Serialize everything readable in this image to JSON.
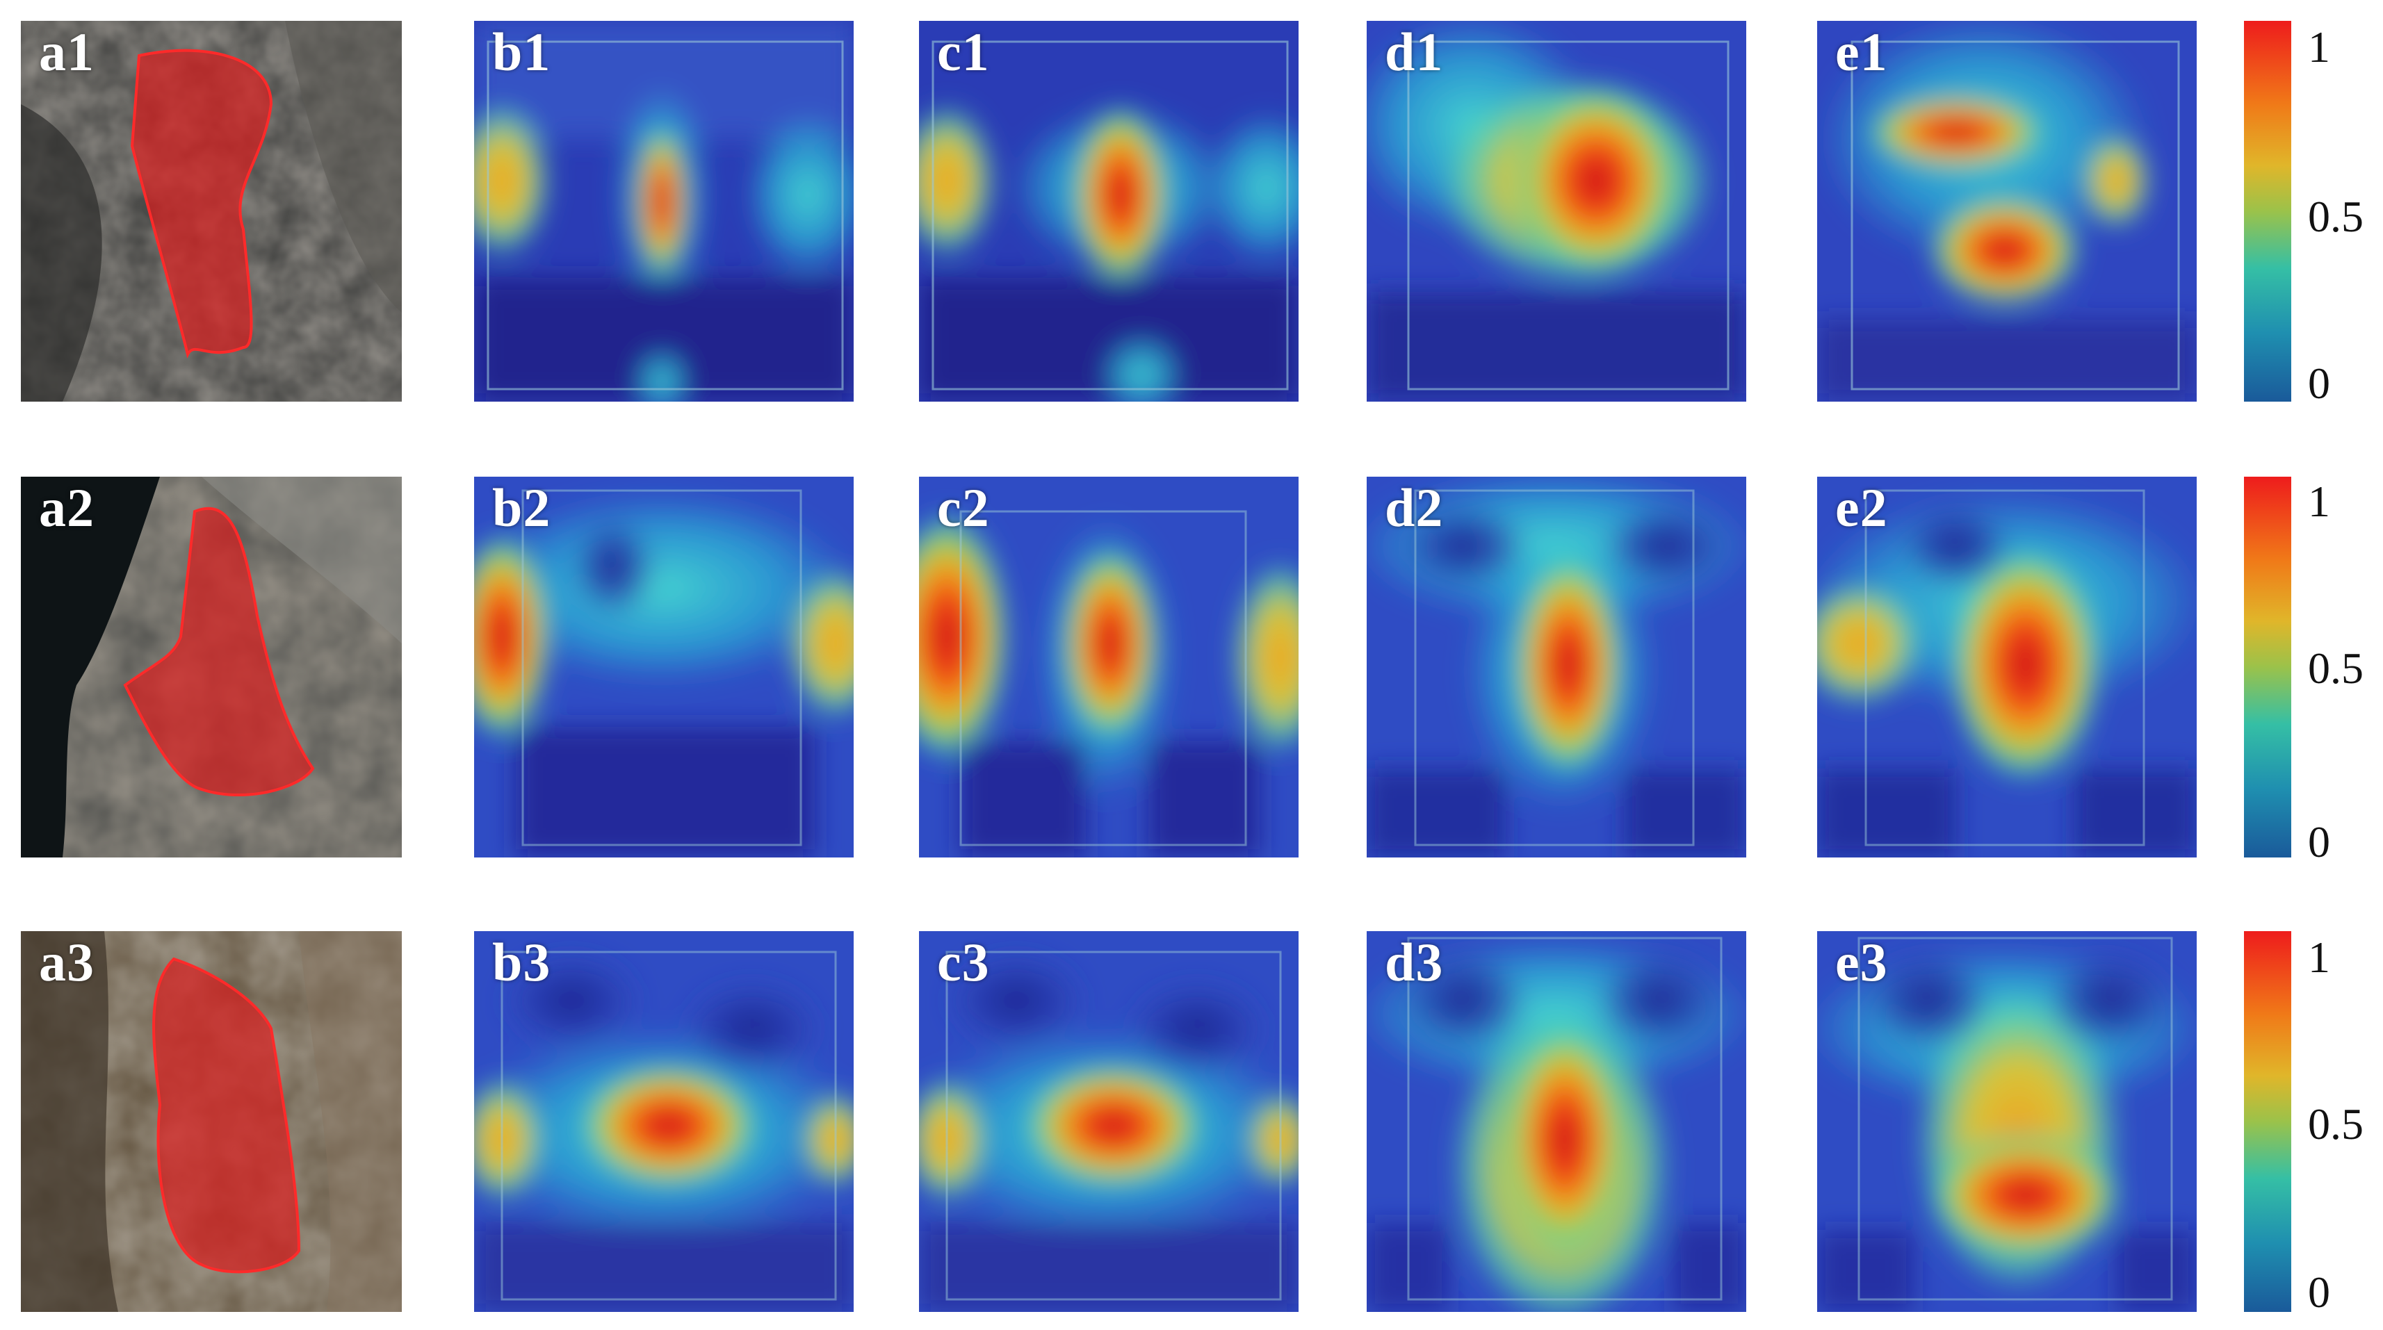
{
  "figure": {
    "rows": [
      {
        "panels": [
          {
            "label": "a1",
            "kind": "photo"
          },
          {
            "label": "b1",
            "kind": "heatmap"
          },
          {
            "label": "c1",
            "kind": "heatmap"
          },
          {
            "label": "d1",
            "kind": "heatmap"
          },
          {
            "label": "e1",
            "kind": "heatmap"
          }
        ],
        "colorbar": {
          "ticks": [
            "1",
            "0.5",
            "0"
          ]
        }
      },
      {
        "panels": [
          {
            "label": "a2",
            "kind": "photo"
          },
          {
            "label": "b2",
            "kind": "heatmap"
          },
          {
            "label": "c2",
            "kind": "heatmap"
          },
          {
            "label": "d2",
            "kind": "heatmap"
          },
          {
            "label": "e2",
            "kind": "heatmap"
          }
        ],
        "colorbar": {
          "ticks": [
            "1",
            "0.5",
            "0"
          ]
        }
      },
      {
        "panels": [
          {
            "label": "a3",
            "kind": "photo"
          },
          {
            "label": "b3",
            "kind": "heatmap"
          },
          {
            "label": "c3",
            "kind": "heatmap"
          },
          {
            "label": "d3",
            "kind": "heatmap"
          },
          {
            "label": "e3",
            "kind": "heatmap"
          }
        ],
        "colorbar": {
          "ticks": [
            "1",
            "0.5",
            "0"
          ]
        }
      }
    ],
    "colormap": {
      "stops": [
        "#1c3fa0",
        "#1f77b4",
        "#22c3c3",
        "#7fd35a",
        "#f2c21b",
        "#f07a16",
        "#e02020"
      ],
      "range": [
        0,
        1
      ]
    },
    "overlay_color": "#d81e1e"
  }
}
